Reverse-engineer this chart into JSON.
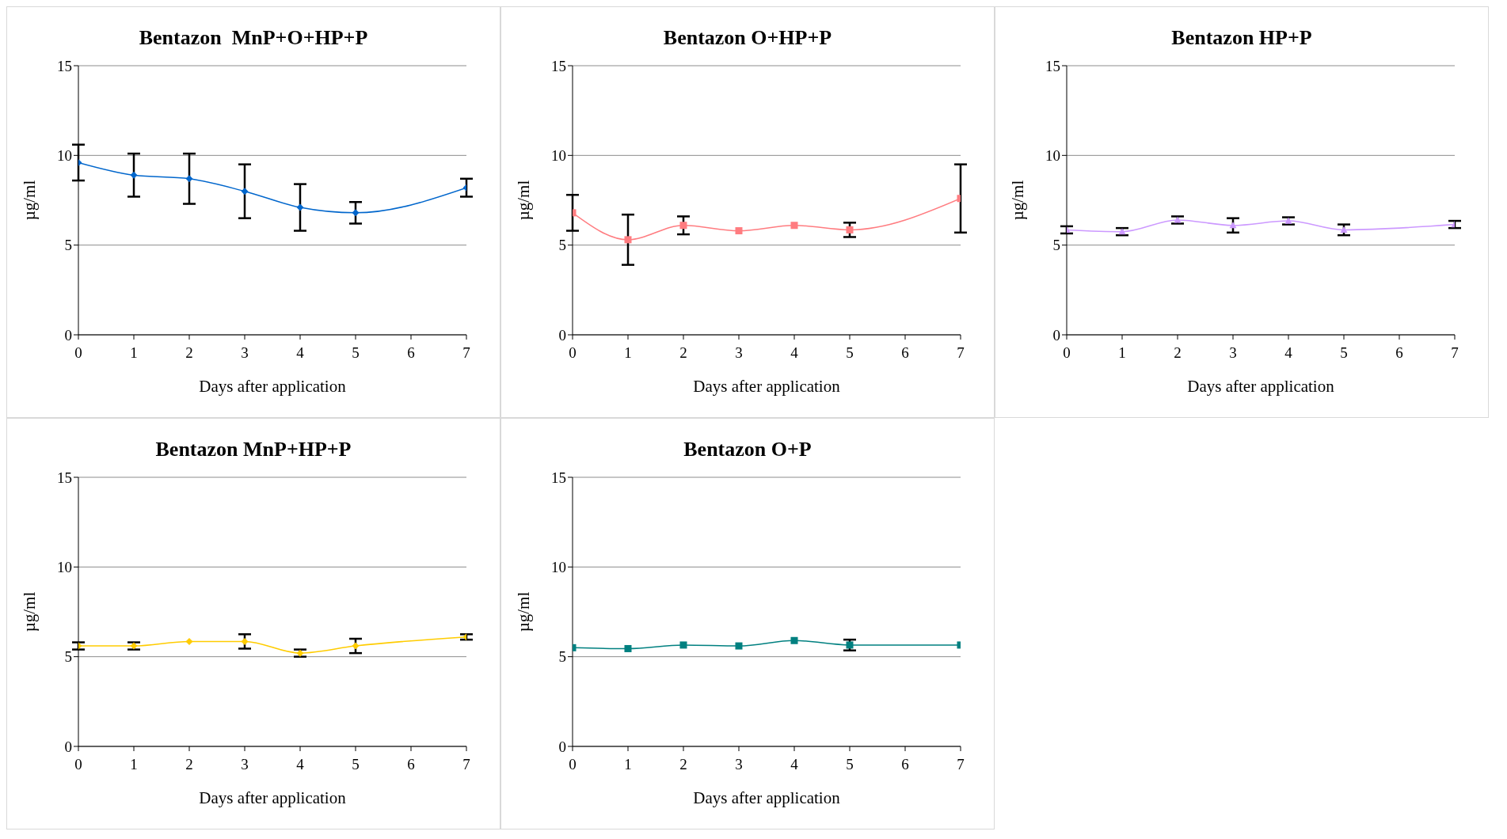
{
  "chart_data": [
    {
      "type": "line",
      "title": "Bentazon  MnP+O+HP+P",
      "xlabel": "Days after application",
      "ylabel": "µg/ml",
      "x": [
        0,
        1,
        2,
        3,
        4,
        5,
        7
      ],
      "xlim": [
        0,
        7
      ],
      "xticks": [
        0,
        1,
        2,
        3,
        4,
        5,
        6,
        7
      ],
      "ylim": [
        0,
        15
      ],
      "yticks": [
        0,
        5,
        10,
        15
      ],
      "grid": "y",
      "legend": false,
      "marker": "diamond",
      "series": [
        {
          "color": "#0066cc",
          "values": [
            9.6,
            8.9,
            8.7,
            8.0,
            7.1,
            6.8,
            8.2
          ],
          "errors": [
            1.0,
            1.2,
            1.4,
            1.5,
            1.3,
            0.6,
            0.5
          ]
        }
      ]
    },
    {
      "type": "line",
      "title": "Bentazon O+HP+P",
      "xlabel": "Days after application",
      "ylabel": "µg/ml",
      "x": [
        0,
        1,
        2,
        3,
        4,
        5,
        7
      ],
      "xlim": [
        0,
        7
      ],
      "xticks": [
        0,
        1,
        2,
        3,
        4,
        5,
        6,
        7
      ],
      "ylim": [
        0,
        15
      ],
      "yticks": [
        0,
        5,
        10,
        15
      ],
      "grid": "y",
      "legend": false,
      "marker": "square",
      "series": [
        {
          "color": "#ff7c80",
          "values": [
            6.8,
            5.3,
            6.1,
            5.8,
            6.1,
            5.85,
            7.6
          ],
          "errors": [
            1.0,
            1.4,
            0.5,
            null,
            null,
            0.4,
            1.9
          ]
        }
      ]
    },
    {
      "type": "line",
      "title": "Bentazon HP+P",
      "xlabel": "Days after application",
      "ylabel": "µg/ml",
      "x": [
        0,
        1,
        2,
        3,
        4,
        5,
        7
      ],
      "xlim": [
        0,
        7
      ],
      "xticks": [
        0,
        1,
        2,
        3,
        4,
        5,
        6,
        7
      ],
      "ylim": [
        0,
        15
      ],
      "yticks": [
        0,
        5,
        10,
        15
      ],
      "grid": "y",
      "legend": false,
      "marker": "triangle",
      "series": [
        {
          "color": "#cc99ff",
          "values": [
            5.85,
            5.75,
            6.4,
            6.1,
            6.35,
            5.85,
            6.15
          ],
          "errors": [
            0.2,
            0.2,
            0.2,
            0.4,
            0.2,
            0.3,
            0.2
          ]
        }
      ]
    },
    {
      "type": "line",
      "title": "Bentazon MnP+HP+P",
      "xlabel": "Days after application",
      "ylabel": "µg/ml",
      "x": [
        0,
        1,
        2,
        3,
        4,
        5,
        7
      ],
      "xlim": [
        0,
        7
      ],
      "xticks": [
        0,
        1,
        2,
        3,
        4,
        5,
        6,
        7
      ],
      "ylim": [
        0,
        15
      ],
      "yticks": [
        0,
        5,
        10,
        15
      ],
      "grid": "y",
      "legend": false,
      "marker": "diamond",
      "series": [
        {
          "color": "#ffcc00",
          "values": [
            5.6,
            5.6,
            5.85,
            5.85,
            5.2,
            5.6,
            6.1
          ],
          "errors": [
            0.2,
            0.2,
            null,
            0.4,
            0.2,
            0.4,
            0.15
          ]
        }
      ]
    },
    {
      "type": "line",
      "title": "Bentazon O+P",
      "xlabel": "Days after application",
      "ylabel": "µg/ml",
      "x": [
        0,
        1,
        2,
        3,
        4,
        5,
        7
      ],
      "xlim": [
        0,
        7
      ],
      "xticks": [
        0,
        1,
        2,
        3,
        4,
        5,
        6,
        7
      ],
      "ylim": [
        0,
        15
      ],
      "yticks": [
        0,
        5,
        10,
        15
      ],
      "grid": "y",
      "legend": false,
      "marker": "square",
      "series": [
        {
          "color": "#008080",
          "values": [
            5.5,
            5.45,
            5.65,
            5.6,
            5.9,
            5.65,
            5.65
          ],
          "errors": [
            null,
            null,
            null,
            null,
            null,
            0.3,
            null
          ]
        }
      ]
    }
  ]
}
